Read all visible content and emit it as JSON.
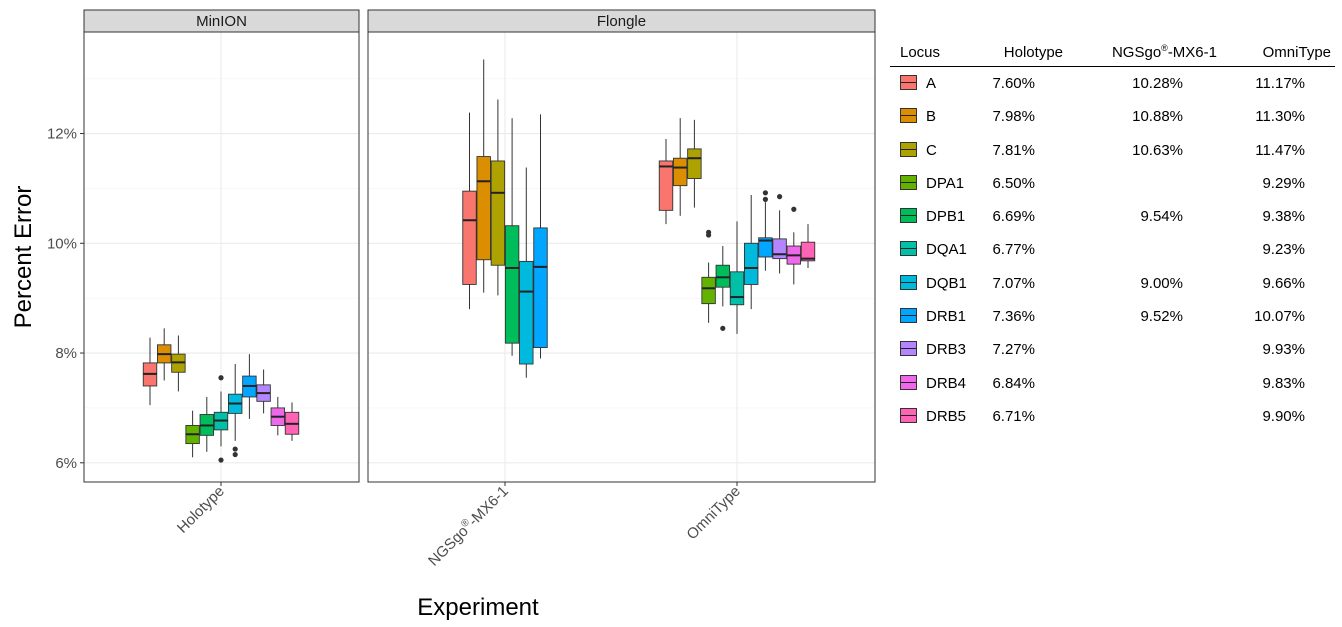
{
  "chart_data": {
    "type": "box",
    "ylabel": "Percent Error",
    "xlabel": "Experiment",
    "ylim": [
      5.65,
      13.85
    ],
    "yticks": [
      6,
      8,
      10,
      12
    ],
    "ytick_labels": [
      "6%",
      "8%",
      "10%",
      "12%"
    ],
    "grid": true,
    "facets": [
      {
        "label": "MinION",
        "groups": [
          "Holotype"
        ]
      },
      {
        "label": "Flongle",
        "groups": [
          "NGSgo®-MX6-1",
          "OmniType"
        ]
      }
    ],
    "group_labels": {
      "Holotype": "Holotype",
      "NGSgo®-MX6-1": "NGSgo®-MX6-1",
      "OmniType": "OmniType"
    },
    "loci": [
      "A",
      "B",
      "C",
      "DPA1",
      "DPB1",
      "DQA1",
      "DQB1",
      "DRB1",
      "DRB3",
      "DRB4",
      "DRB5"
    ],
    "colors": {
      "A": "#F8766D",
      "B": "#DB8E00",
      "C": "#AEA200",
      "DPA1": "#64B200",
      "DPB1": "#00BD5C",
      "DQA1": "#00C1A7",
      "DQB1": "#00BADE",
      "DRB1": "#00A6FF",
      "DRB3": "#B385FF",
      "DRB4": "#EF67EB",
      "DRB5": "#FF63B6"
    },
    "boxes": {
      "Holotype": [
        {
          "locus": "A",
          "min": 7.05,
          "q1": 7.4,
          "median": 7.62,
          "q3": 7.82,
          "max": 8.28,
          "outliers": []
        },
        {
          "locus": "B",
          "min": 7.5,
          "q1": 7.82,
          "median": 7.98,
          "q3": 8.15,
          "max": 8.45,
          "outliers": []
        },
        {
          "locus": "C",
          "min": 7.3,
          "q1": 7.65,
          "median": 7.83,
          "q3": 7.98,
          "max": 8.32,
          "outliers": []
        },
        {
          "locus": "DPA1",
          "min": 6.1,
          "q1": 6.35,
          "median": 6.52,
          "q3": 6.68,
          "max": 6.95,
          "outliers": []
        },
        {
          "locus": "DPB1",
          "min": 6.2,
          "q1": 6.5,
          "median": 6.68,
          "q3": 6.88,
          "max": 7.2,
          "outliers": []
        },
        {
          "locus": "DQA1",
          "min": 6.3,
          "q1": 6.6,
          "median": 6.77,
          "q3": 6.92,
          "max": 7.3,
          "outliers": [
            6.05,
            7.55
          ]
        },
        {
          "locus": "DQB1",
          "min": 6.4,
          "q1": 6.9,
          "median": 7.08,
          "q3": 7.25,
          "max": 7.8,
          "outliers": [
            6.15,
            6.25
          ]
        },
        {
          "locus": "DRB1",
          "min": 6.8,
          "q1": 7.2,
          "median": 7.4,
          "q3": 7.58,
          "max": 7.98,
          "outliers": []
        },
        {
          "locus": "DRB3",
          "min": 6.9,
          "q1": 7.12,
          "median": 7.27,
          "q3": 7.42,
          "max": 7.7,
          "outliers": []
        },
        {
          "locus": "DRB4",
          "min": 6.5,
          "q1": 6.68,
          "median": 6.84,
          "q3": 7.0,
          "max": 7.2,
          "outliers": []
        },
        {
          "locus": "DRB5",
          "min": 6.4,
          "q1": 6.52,
          "median": 6.71,
          "q3": 6.92,
          "max": 7.1,
          "outliers": []
        }
      ],
      "NGSgo®-MX6-1": [
        {
          "locus": "A",
          "min": 8.8,
          "q1": 9.25,
          "median": 10.42,
          "q3": 10.95,
          "max": 12.38,
          "outliers": []
        },
        {
          "locus": "B",
          "min": 9.1,
          "q1": 9.7,
          "median": 11.13,
          "q3": 11.58,
          "max": 13.35,
          "outliers": []
        },
        {
          "locus": "C",
          "min": 9.05,
          "q1": 9.6,
          "median": 10.92,
          "q3": 11.5,
          "max": 12.62,
          "outliers": []
        },
        {
          "locus": "DPB1",
          "min": 7.95,
          "q1": 8.18,
          "median": 9.55,
          "q3": 10.32,
          "max": 12.28,
          "outliers": []
        },
        {
          "locus": "DQB1",
          "min": 7.55,
          "q1": 7.8,
          "median": 9.12,
          "q3": 9.67,
          "max": 11.38,
          "outliers": []
        },
        {
          "locus": "DRB1",
          "min": 7.9,
          "q1": 8.1,
          "median": 9.57,
          "q3": 10.28,
          "max": 12.35,
          "outliers": []
        }
      ],
      "OmniType": [
        {
          "locus": "A",
          "min": 10.35,
          "q1": 10.6,
          "median": 11.4,
          "q3": 11.5,
          "max": 11.9,
          "outliers": []
        },
        {
          "locus": "B",
          "min": 10.5,
          "q1": 11.05,
          "median": 11.38,
          "q3": 11.55,
          "max": 12.28,
          "outliers": []
        },
        {
          "locus": "C",
          "min": 10.65,
          "q1": 11.18,
          "median": 11.55,
          "q3": 11.72,
          "max": 12.25,
          "outliers": []
        },
        {
          "locus": "DPA1",
          "min": 8.55,
          "q1": 8.9,
          "median": 9.18,
          "q3": 9.38,
          "max": 9.65,
          "outliers": [
            10.15,
            10.2
          ]
        },
        {
          "locus": "DPB1",
          "min": 8.85,
          "q1": 9.2,
          "median": 9.38,
          "q3": 9.6,
          "max": 9.95,
          "outliers": [
            8.45
          ]
        },
        {
          "locus": "DQA1",
          "min": 8.35,
          "q1": 8.88,
          "median": 9.02,
          "q3": 9.48,
          "max": 10.4,
          "outliers": []
        },
        {
          "locus": "DQB1",
          "min": 8.8,
          "q1": 9.25,
          "median": 9.55,
          "q3": 10.0,
          "max": 10.88,
          "outliers": []
        },
        {
          "locus": "DRB1",
          "min": 9.5,
          "q1": 9.75,
          "median": 10.05,
          "q3": 10.1,
          "max": 10.75,
          "outliers": [
            10.8,
            10.92
          ]
        },
        {
          "locus": "DRB3",
          "min": 9.45,
          "q1": 9.72,
          "median": 9.8,
          "q3": 10.08,
          "max": 10.6,
          "outliers": [
            10.85
          ]
        },
        {
          "locus": "DRB4",
          "min": 9.25,
          "q1": 9.62,
          "median": 9.78,
          "q3": 9.95,
          "max": 10.2,
          "outliers": [
            10.62
          ]
        },
        {
          "locus": "DRB5",
          "min": 9.55,
          "q1": 9.68,
          "median": 9.72,
          "q3": 10.02,
          "max": 10.35,
          "outliers": []
        }
      ]
    }
  },
  "legend_table": {
    "headers": {
      "locus": "Locus",
      "holotype": "Holotype",
      "ngs_prefix": "NGSgo",
      "ngs_sup": "®",
      "ngs_suffix": "-MX6-1",
      "omnitype": "OmniType"
    },
    "rows": [
      {
        "locus": "A",
        "holotype": "7.60%",
        "ngs": "10.28%",
        "omnitype": "11.17%"
      },
      {
        "locus": "B",
        "holotype": "7.98%",
        "ngs": "10.88%",
        "omnitype": "11.30%"
      },
      {
        "locus": "C",
        "holotype": "7.81%",
        "ngs": "10.63%",
        "omnitype": "11.47%"
      },
      {
        "locus": "DPA1",
        "holotype": "6.50%",
        "ngs": "",
        "omnitype": "9.29%"
      },
      {
        "locus": "DPB1",
        "holotype": "6.69%",
        "ngs": "9.54%",
        "omnitype": "9.38%"
      },
      {
        "locus": "DQA1",
        "holotype": "6.77%",
        "ngs": "",
        "omnitype": "9.23%"
      },
      {
        "locus": "DQB1",
        "holotype": "7.07%",
        "ngs": "9.00%",
        "omnitype": "9.66%"
      },
      {
        "locus": "DRB1",
        "holotype": "7.36%",
        "ngs": "9.52%",
        "omnitype": "10.07%"
      },
      {
        "locus": "DRB3",
        "holotype": "7.27%",
        "ngs": "",
        "omnitype": "9.93%"
      },
      {
        "locus": "DRB4",
        "holotype": "6.84%",
        "ngs": "",
        "omnitype": "9.83%"
      },
      {
        "locus": "DRB5",
        "holotype": "6.71%",
        "ngs": "",
        "omnitype": "9.90%"
      }
    ]
  }
}
